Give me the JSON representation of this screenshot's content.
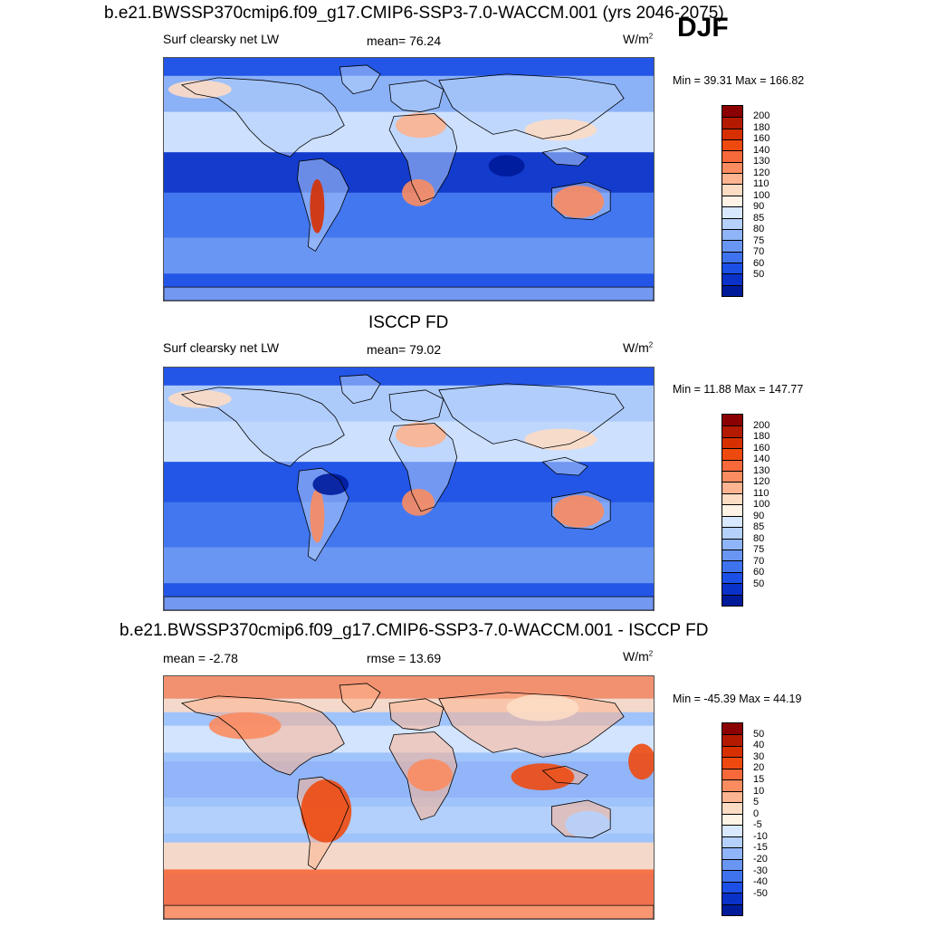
{
  "season": "DJF",
  "panels": [
    {
      "title": "b.e21.BWSSP370cmip6.f09_g17.CMIP6-SSP3-7.0-WACCM.001 (yrs 2046-2075)",
      "left_label": "Surf clearsky net LW",
      "center_label": "mean=  76.24",
      "units_base": "W/m",
      "units_exp": "2",
      "minmax": "Min =  39.31 Max = 166.82",
      "colorbar": {
        "labels": [
          "200",
          "180",
          "160",
          "140",
          "130",
          "120",
          "110",
          "100",
          "90",
          "85",
          "80",
          "75",
          "70",
          "60",
          "50"
        ],
        "colors": [
          "#8b0000",
          "#b31a00",
          "#d73000",
          "#ee4a10",
          "#f7683a",
          "#fb8c60",
          "#fdb490",
          "#fddcc4",
          "#fff3e6",
          "#d8e8ff",
          "#b5d0fb",
          "#8fb4f7",
          "#6a96f3",
          "#3f73ee",
          "#1c4fe6",
          "#0a31c8",
          "#001b9a"
        ]
      },
      "map_theme": "absolute_a"
    },
    {
      "title": "ISCCP FD",
      "left_label": "Surf clearsky net LW",
      "center_label": "mean=  79.02",
      "units_base": "W/m",
      "units_exp": "2",
      "minmax": "Min =  11.88 Max = 147.77",
      "colorbar": {
        "labels": [
          "200",
          "180",
          "160",
          "140",
          "130",
          "120",
          "110",
          "100",
          "90",
          "85",
          "80",
          "75",
          "70",
          "60",
          "50"
        ],
        "colors": [
          "#8b0000",
          "#b31a00",
          "#d73000",
          "#ee4a10",
          "#f7683a",
          "#fb8c60",
          "#fdb490",
          "#fddcc4",
          "#fff3e6",
          "#d8e8ff",
          "#b5d0fb",
          "#8fb4f7",
          "#6a96f3",
          "#3f73ee",
          "#1c4fe6",
          "#0a31c8",
          "#001b9a"
        ]
      },
      "map_theme": "absolute_b"
    },
    {
      "title": "b.e21.BWSSP370cmip6.f09_g17.CMIP6-SSP3-7.0-WACCM.001 - ISCCP FD",
      "left_label": "mean =  -2.78",
      "center_label": "rmse =  13.69",
      "units_base": "W/m",
      "units_exp": "2",
      "minmax": "Min = -45.39 Max =  44.19",
      "colorbar": {
        "labels": [
          "50",
          "40",
          "30",
          "20",
          "15",
          "10",
          "5",
          "0",
          "-5",
          "-10",
          "-15",
          "-20",
          "-30",
          "-40",
          "-50"
        ],
        "colors": [
          "#8b0000",
          "#b31a00",
          "#d73000",
          "#ee4a10",
          "#f7683a",
          "#fb8c60",
          "#fdb490",
          "#fddcc4",
          "#fff3e6",
          "#d8e8ff",
          "#b5d0fb",
          "#8fb4f7",
          "#6a96f3",
          "#3f73ee",
          "#1c4fe6",
          "#0a31c8",
          "#001b9a"
        ]
      },
      "map_theme": "difference"
    }
  ]
}
